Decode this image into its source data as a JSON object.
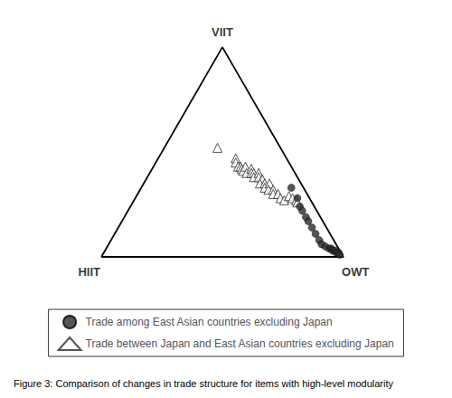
{
  "chart_data": {
    "type": "ternary",
    "title": "Figure 3: Comparison of changes in trade structure for items with high-level modularity",
    "corner_labels": {
      "top": "VIIT",
      "bottom_left": "HIIT",
      "bottom_right": "OWT"
    },
    "legend": "bottom",
    "series": [
      {
        "name": "Trade among East Asian countries excluding Japan",
        "marker": "circle",
        "color": "#2a2a2a",
        "values": [
          [
            0.62,
            0.33,
            0.05
          ],
          [
            0.67,
            0.28,
            0.05
          ],
          [
            0.7,
            0.24,
            0.06
          ],
          [
            0.72,
            0.22,
            0.06
          ],
          [
            0.75,
            0.19,
            0.06
          ],
          [
            0.77,
            0.17,
            0.06
          ],
          [
            0.8,
            0.14,
            0.06
          ],
          [
            0.83,
            0.11,
            0.06
          ],
          [
            0.86,
            0.08,
            0.06
          ],
          [
            0.88,
            0.06,
            0.06
          ],
          [
            0.9,
            0.05,
            0.05
          ],
          [
            0.92,
            0.04,
            0.04
          ],
          [
            0.93,
            0.04,
            0.03
          ],
          [
            0.94,
            0.03,
            0.03
          ],
          [
            0.95,
            0.03,
            0.02
          ],
          [
            0.96,
            0.02,
            0.02
          ],
          [
            0.97,
            0.02,
            0.01
          ],
          [
            0.98,
            0.01,
            0.01
          ]
        ]
      },
      {
        "name": "Trade between Japan and East Asian countries excluding Japan",
        "marker": "triangle-open",
        "color": "#2a2a2a",
        "values": [
          [
            0.22,
            0.52,
            0.26
          ],
          [
            0.32,
            0.47,
            0.21
          ],
          [
            0.33,
            0.45,
            0.22
          ],
          [
            0.35,
            0.43,
            0.22
          ],
          [
            0.36,
            0.43,
            0.21
          ],
          [
            0.37,
            0.42,
            0.21
          ],
          [
            0.38,
            0.41,
            0.21
          ],
          [
            0.38,
            0.43,
            0.19
          ],
          [
            0.4,
            0.4,
            0.2
          ],
          [
            0.41,
            0.42,
            0.17
          ],
          [
            0.42,
            0.4,
            0.18
          ],
          [
            0.43,
            0.4,
            0.17
          ],
          [
            0.44,
            0.38,
            0.18
          ],
          [
            0.45,
            0.4,
            0.15
          ],
          [
            0.46,
            0.38,
            0.16
          ],
          [
            0.48,
            0.37,
            0.15
          ],
          [
            0.48,
            0.35,
            0.17
          ],
          [
            0.5,
            0.35,
            0.15
          ],
          [
            0.51,
            0.33,
            0.16
          ],
          [
            0.52,
            0.35,
            0.13
          ],
          [
            0.53,
            0.32,
            0.15
          ],
          [
            0.55,
            0.32,
            0.13
          ],
          [
            0.56,
            0.3,
            0.14
          ],
          [
            0.58,
            0.3,
            0.12
          ],
          [
            0.6,
            0.28,
            0.12
          ],
          [
            0.62,
            0.27,
            0.11
          ],
          [
            0.63,
            0.29,
            0.08
          ],
          [
            0.65,
            0.28,
            0.07
          ],
          [
            0.67,
            0.27,
            0.06
          ],
          [
            0.68,
            0.26,
            0.06
          ]
        ]
      }
    ]
  }
}
